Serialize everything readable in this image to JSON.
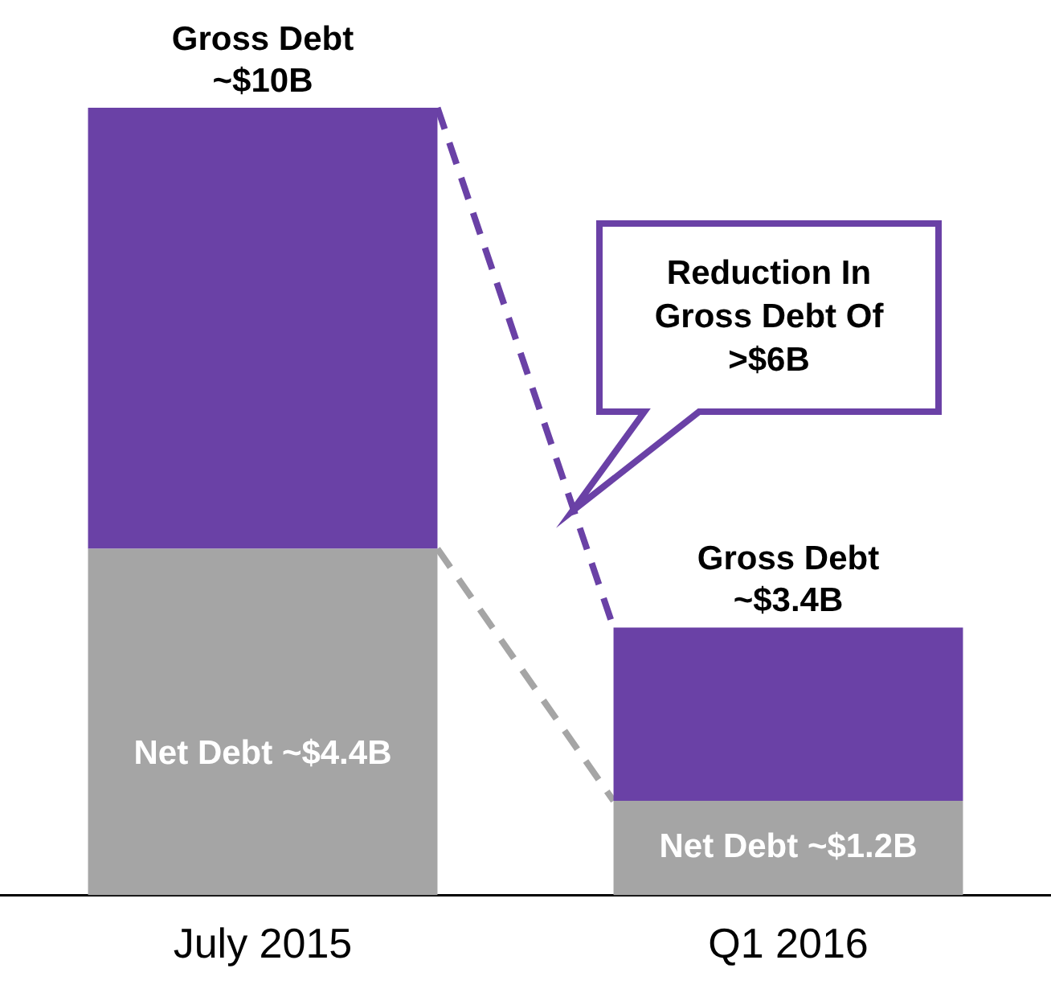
{
  "chart_data": {
    "type": "bar",
    "stacked": true,
    "categories": [
      "July 2015",
      "Q1 2016"
    ],
    "series": [
      {
        "name": null,
        "color": "#a5a5a5",
        "values": [
          4.4,
          1.2
        ],
        "value_labels": [
          "Net Debt ~$4.4B",
          "Net Debt ~$1.2B"
        ]
      },
      {
        "name": null,
        "color": "#6a41a6",
        "values": [
          5.6,
          2.2
        ]
      }
    ],
    "totals": [
      "Gross Debt ~$10B",
      "Gross Debt ~$3.4B"
    ],
    "annotations": [
      "Reduction In Gross Debt Of >$6B"
    ],
    "tick_labels": "x",
    "grid": false,
    "legend": false
  }
}
